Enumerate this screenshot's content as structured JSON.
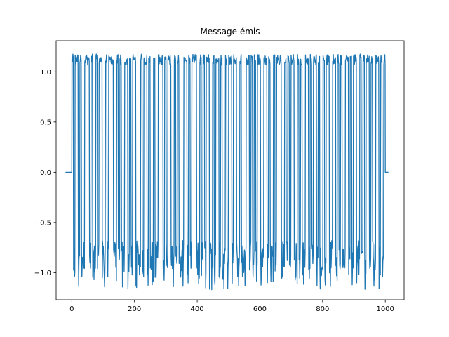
{
  "chart_data": {
    "type": "line",
    "title": "Message émis",
    "xlabel": "",
    "ylabel": "",
    "xlim": [
      -50,
      1060
    ],
    "ylim": [
      -1.27,
      1.31
    ],
    "x_ticks": [
      0,
      200,
      400,
      600,
      800,
      1000
    ],
    "x_tick_labels": [
      "0",
      "200",
      "400",
      "600",
      "800",
      "1000"
    ],
    "y_ticks": [
      -1.0,
      -0.5,
      0.0,
      0.5,
      1.0
    ],
    "y_tick_labels": [
      "−1.0",
      "−0.5",
      "0.0",
      "0.5",
      "1.0"
    ],
    "grid": false,
    "series": [
      {
        "color": "#1f77b4",
        "x_start": -20,
        "x_end": 1010,
        "signal_start": 0,
        "signal_end": 1000,
        "baseline": 0.0,
        "high_level": 1.1,
        "low_level": -0.82,
        "high_max": 1.2,
        "low_min": -1.17,
        "bits": [
          1,
          0,
          1,
          1,
          0,
          1,
          0,
          0,
          1,
          1,
          1,
          0,
          1,
          0,
          0,
          1,
          0,
          1,
          1,
          0,
          0,
          1,
          0,
          1,
          1,
          1,
          0,
          0,
          1,
          0,
          1,
          0,
          0,
          1,
          1,
          0,
          1,
          0,
          1,
          1,
          0,
          0,
          0,
          1,
          0,
          1,
          1,
          0,
          1,
          0,
          0,
          1,
          0,
          0,
          1,
          1,
          1,
          0,
          1,
          0,
          1,
          1,
          0,
          0,
          1,
          0,
          1,
          0,
          0,
          0,
          1,
          1,
          0,
          1,
          0,
          1,
          1,
          1,
          0,
          0,
          1,
          0,
          1,
          0,
          1,
          1,
          0,
          0,
          1,
          0,
          1,
          1,
          0,
          1,
          0,
          0,
          1,
          0,
          1,
          1,
          0,
          1,
          1,
          0,
          0,
          1,
          0,
          0,
          0,
          1,
          1,
          0,
          1,
          0,
          1,
          0,
          1,
          1,
          0,
          0,
          1,
          1,
          0,
          1,
          0,
          0,
          1,
          0,
          1,
          1,
          1,
          0,
          0,
          1,
          0,
          1,
          0,
          1,
          1,
          0,
          0,
          1,
          0,
          1,
          0,
          0,
          1,
          1,
          0,
          1,
          0,
          1,
          1,
          0,
          1,
          0,
          0,
          1,
          0,
          1,
          1,
          0,
          0,
          1,
          1,
          0,
          1,
          0,
          1,
          0,
          0,
          1,
          1,
          0,
          1,
          0,
          1,
          1,
          0,
          0,
          1,
          0,
          1,
          0,
          1,
          1,
          0,
          1,
          0,
          0,
          1,
          1,
          0,
          1,
          0,
          1
        ]
      }
    ]
  }
}
